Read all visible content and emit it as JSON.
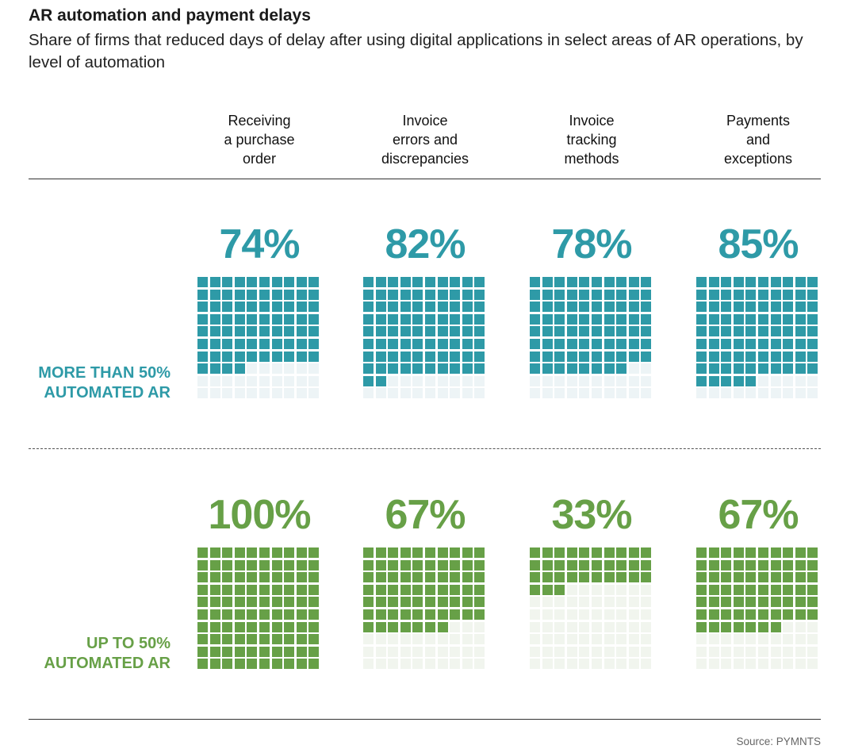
{
  "title": "AR automation and payment delays",
  "subtitle": "Share of firms that reduced days of delay after using digital applications in select areas of AR operations, by level of automation",
  "source": "Source: PYMNTS",
  "colors": {
    "teal": "#2e9aa7",
    "teal_empty": "#edf4f6",
    "green": "#67a047",
    "green_empty": "#f1f5ee"
  },
  "chart_data": {
    "type": "waffle",
    "categories": [
      [
        "Receiving",
        "a purchase",
        "order"
      ],
      [
        "Invoice",
        "errors and",
        "discrepancies"
      ],
      [
        "Invoice",
        "tracking",
        "methods"
      ],
      [
        "Payments",
        "and",
        "exceptions"
      ]
    ],
    "series": [
      {
        "name_lines": [
          "MORE THAN 50%",
          "AUTOMATED AR"
        ],
        "color": "teal",
        "values": [
          74,
          82,
          78,
          85
        ],
        "labels": [
          "74%",
          "82%",
          "78%",
          "85%"
        ]
      },
      {
        "name_lines": [
          "UP TO 50%",
          "AUTOMATED AR"
        ],
        "color": "green",
        "values": [
          100,
          67,
          33,
          67
        ],
        "labels": [
          "100%",
          "67%",
          "33%",
          "67%"
        ]
      }
    ],
    "grid": [
      10,
      10
    ],
    "unit": "%"
  }
}
